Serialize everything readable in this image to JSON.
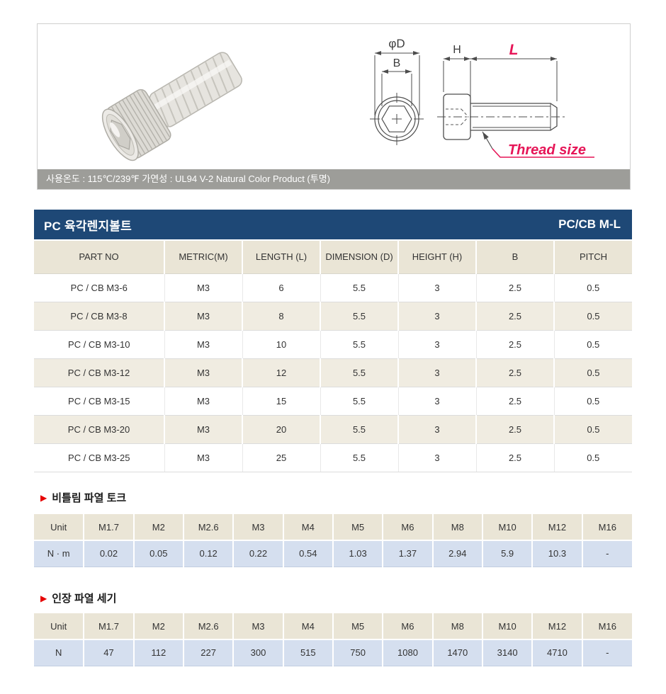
{
  "photo_panel": {
    "caption": "사용온도 : 115℃/239℉  가연성 : UL94 V-2 Natural Color Product (투명)"
  },
  "diagram": {
    "labels": {
      "diameter": "φD",
      "socket": "B",
      "height": "H",
      "length": "L",
      "thread": "Thread size"
    }
  },
  "title_bar": {
    "title": "PC 육각렌지볼트",
    "code": "PC/CB M-L"
  },
  "spec_table": {
    "headers": [
      "PART NO",
      "METRIC(M)",
      "LENGTH (L)",
      "DIMENSION (D)",
      "HEIGHT (H)",
      "B",
      "PITCH"
    ],
    "rows": [
      [
        "PC / CB M3-6",
        "M3",
        "6",
        "5.5",
        "3",
        "2.5",
        "0.5"
      ],
      [
        "PC / CB M3-8",
        "M3",
        "8",
        "5.5",
        "3",
        "2.5",
        "0.5"
      ],
      [
        "PC / CB M3-10",
        "M3",
        "10",
        "5.5",
        "3",
        "2.5",
        "0.5"
      ],
      [
        "PC / CB M3-12",
        "M3",
        "12",
        "5.5",
        "3",
        "2.5",
        "0.5"
      ],
      [
        "PC / CB M3-15",
        "M3",
        "15",
        "5.5",
        "3",
        "2.5",
        "0.5"
      ],
      [
        "PC / CB M3-20",
        "M3",
        "20",
        "5.5",
        "3",
        "2.5",
        "0.5"
      ],
      [
        "PC / CB M3-25",
        "M3",
        "25",
        "5.5",
        "3",
        "2.5",
        "0.5"
      ]
    ]
  },
  "torque": {
    "bullet": "▶",
    "heading": "비틀림 파열 토크",
    "headers": [
      "Unit",
      "M1.7",
      "M2",
      "M2.6",
      "M3",
      "M4",
      "M5",
      "M6",
      "M8",
      "M10",
      "M12",
      "M16"
    ],
    "row": [
      "N · m",
      "0.02",
      "0.05",
      "0.12",
      "0.22",
      "0.54",
      "1.03",
      "1.37",
      "2.94",
      "5.9",
      "10.3",
      "-"
    ]
  },
  "tensile": {
    "bullet": "▶",
    "heading": "인장 파열 세기",
    "headers": [
      "Unit",
      "M1.7",
      "M2",
      "M2.6",
      "M3",
      "M4",
      "M5",
      "M6",
      "M8",
      "M10",
      "M12",
      "M16"
    ],
    "row": [
      "N",
      "47",
      "112",
      "227",
      "300",
      "515",
      "750",
      "1080",
      "1470",
      "3140",
      "4710",
      "-"
    ]
  },
  "colors": {
    "title_bar_bg": "#1e4876",
    "caption_bar_bg": "#9d9d99",
    "table_header_bg": "#eae5d6",
    "row_alt_bg": "#f0ece1",
    "value_row_bg": "#d5dfef",
    "diagram_red": "#e61557",
    "bullet_red": "#e60000"
  }
}
